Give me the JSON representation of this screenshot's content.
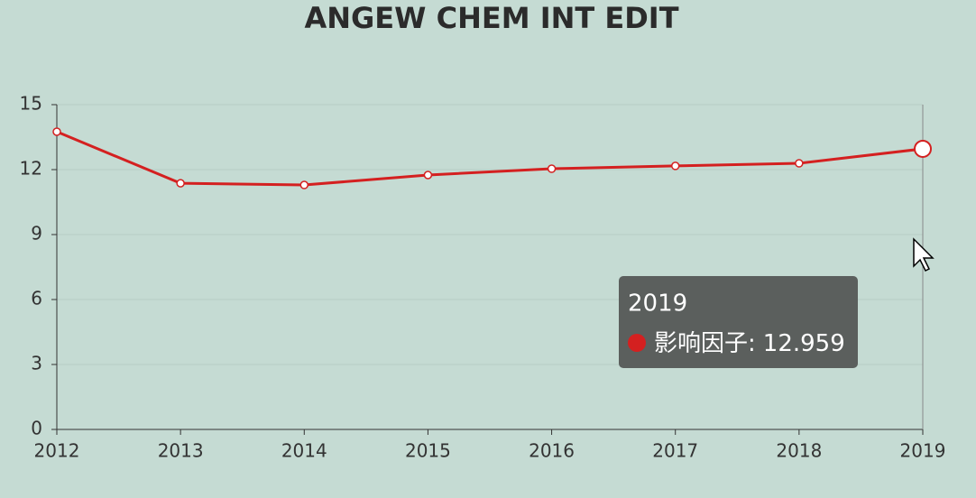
{
  "chart_data": {
    "type": "line",
    "title": "ANGEW CHEM INT EDIT",
    "categories": [
      "2012",
      "2013",
      "2014",
      "2015",
      "2016",
      "2017",
      "2018",
      "2019"
    ],
    "series": [
      {
        "name": "影响因子",
        "color": "#d42020",
        "values": [
          13.75,
          11.37,
          11.29,
          11.75,
          12.04,
          12.17,
          12.29,
          12.959
        ]
      }
    ],
    "ylim": [
      0,
      15
    ],
    "yticks": [
      0,
      3,
      6,
      9,
      12,
      15
    ],
    "grid": true,
    "tooltip_index": 7
  }
}
